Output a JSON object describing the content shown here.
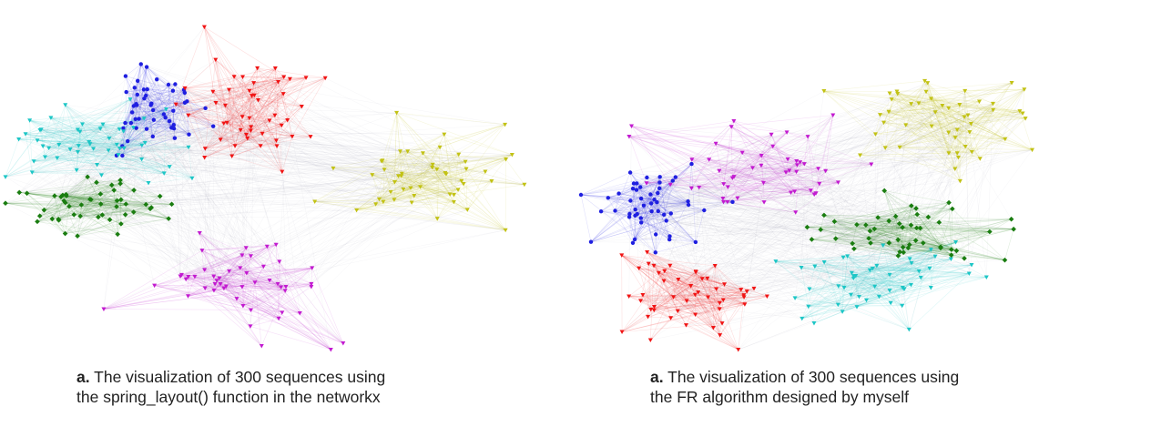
{
  "panels": [
    {
      "caption": {
        "marker": "a.",
        "line1": " The visualization of 300 sequences using",
        "line2": "the spring_layout() function in the networkx"
      }
    },
    {
      "caption": {
        "marker": "a.",
        "line1": " The visualization of 300 sequences using",
        "line2": "the FR algorithm designed by myself"
      }
    }
  ],
  "clusters": [
    {
      "key": "blue",
      "color": "#1f1fe0",
      "marker": "circle"
    },
    {
      "key": "red",
      "color": "#f01414",
      "marker": "triangle"
    },
    {
      "key": "cyan",
      "color": "#1cc6c6",
      "marker": "triangle"
    },
    {
      "key": "green",
      "color": "#1a7d10",
      "marker": "diamond"
    },
    {
      "key": "yellow",
      "color": "#c2c214",
      "marker": "triangle"
    },
    {
      "key": "magenta",
      "color": "#c21ad0",
      "marker": "triangle"
    }
  ],
  "nodes_per_cluster": 50
}
